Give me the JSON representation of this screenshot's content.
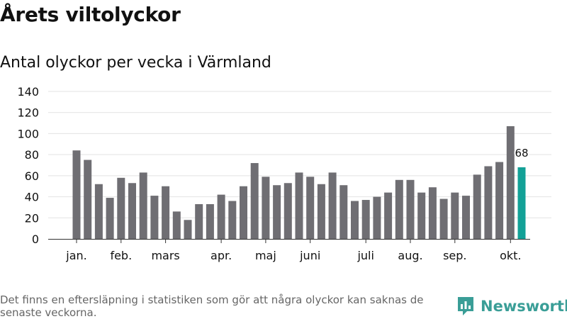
{
  "title": "Årets viltolyckor",
  "subtitle": "Antal olyckor per vecka i Värmland",
  "footnote": "Det finns en eftersläpning i statistiken som gör att några olyckor kan saknas de senaste veckorna.",
  "brand": {
    "name": "Newsworthy",
    "color": "#3a9e97"
  },
  "chart_data": {
    "type": "bar",
    "title": "Antal olyckor per vecka i Värmland",
    "xlabel": "",
    "ylabel": "",
    "ylim": [
      0,
      140
    ],
    "yticks": [
      0,
      20,
      40,
      60,
      80,
      100,
      120,
      140
    ],
    "grid": true,
    "legend": "none",
    "values": [
      84,
      75,
      52,
      39,
      58,
      53,
      63,
      41,
      50,
      26,
      18,
      33,
      33,
      42,
      36,
      50,
      72,
      59,
      51,
      53,
      63,
      59,
      52,
      63,
      51,
      36,
      37,
      40,
      44,
      56,
      56,
      44,
      49,
      38,
      44,
      41,
      61,
      69,
      73,
      107,
      68
    ],
    "highlight_index": 40,
    "highlight_label": "68",
    "month_labels": [
      {
        "label": "jan.",
        "bar_index": 0
      },
      {
        "label": "feb.",
        "bar_index": 4
      },
      {
        "label": "mars",
        "bar_index": 8
      },
      {
        "label": "apr.",
        "bar_index": 13
      },
      {
        "label": "maj",
        "bar_index": 17
      },
      {
        "label": "juni",
        "bar_index": 21
      },
      {
        "label": "juli",
        "bar_index": 26
      },
      {
        "label": "aug.",
        "bar_index": 30
      },
      {
        "label": "sep.",
        "bar_index": 34
      },
      {
        "label": "okt.",
        "bar_index": 39
      }
    ],
    "colors": {
      "bar": "#6f6e73",
      "highlight": "#13a197",
      "grid": "#e3e3e3",
      "axis": "#333333"
    }
  }
}
